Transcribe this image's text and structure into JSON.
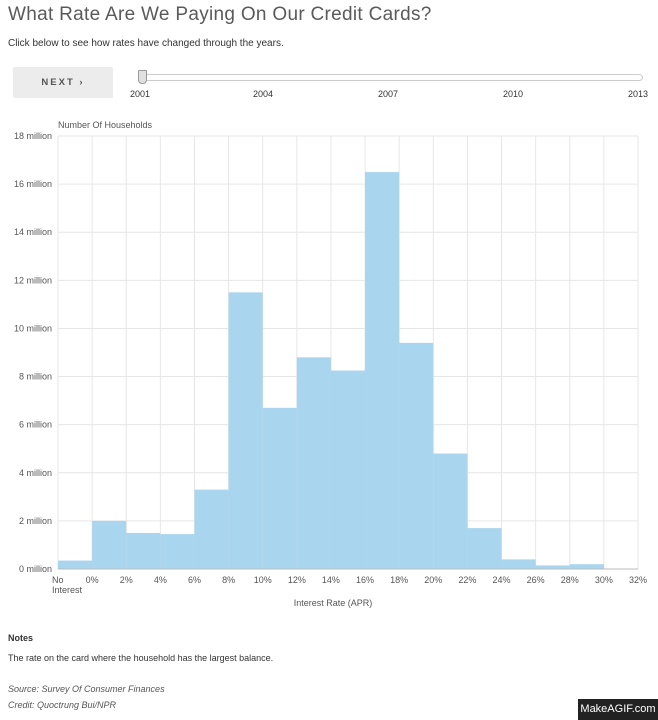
{
  "header": {
    "title": "What Rate Are We Paying On Our Credit Cards?",
    "subtitle": "Click below to see how rates have changed through the years."
  },
  "controls": {
    "next_label": "NEXT ›",
    "years": [
      "2001",
      "2004",
      "2007",
      "2010",
      "2013"
    ],
    "selected_year": "2001"
  },
  "notes": {
    "title": "Notes",
    "text": "The rate on the card where the household has the largest balance."
  },
  "footer": {
    "source": "Source: Survey Of Consumer Finances",
    "credit": "Credit: Quoctrung Bui/NPR"
  },
  "watermark": "MakeAGIF.com",
  "colors": {
    "bar": "#aad5ee",
    "grid": "#e6e6e6",
    "axis_text": "#555555"
  },
  "chart_data": {
    "type": "bar",
    "title": "What Rate Are We Paying On Our Credit Cards?",
    "xlabel": "Interest Rate (APR)",
    "ylabel": "Number Of Households",
    "ylim": [
      0,
      18
    ],
    "y_unit": "million households",
    "y_ticks": [
      "0 million",
      "2 million",
      "4 million",
      "6 million",
      "8 million",
      "10 million",
      "12 million",
      "14 million",
      "16 million",
      "18 million"
    ],
    "x_ticks": [
      "No Interest",
      "0%",
      "2%",
      "4%",
      "6%",
      "8%",
      "10%",
      "12%",
      "14%",
      "16%",
      "18%",
      "20%",
      "22%",
      "24%",
      "26%",
      "28%",
      "30%",
      "32%"
    ],
    "categories": [
      "No Interest",
      "0-2%",
      "2-4%",
      "4-6%",
      "6-8%",
      "8-10%",
      "10-12%",
      "12-14%",
      "14-16%",
      "16-18%",
      "18-20%",
      "20-22%",
      "22-24%",
      "24-26%",
      "26-28%",
      "28-30%",
      "30-32%"
    ],
    "values": [
      0.35,
      2.0,
      1.5,
      1.45,
      3.3,
      11.5,
      6.7,
      8.8,
      8.25,
      16.5,
      9.4,
      4.8,
      1.7,
      0.4,
      0.15,
      0.2,
      0.0
    ],
    "grid": true,
    "year": "2001"
  }
}
